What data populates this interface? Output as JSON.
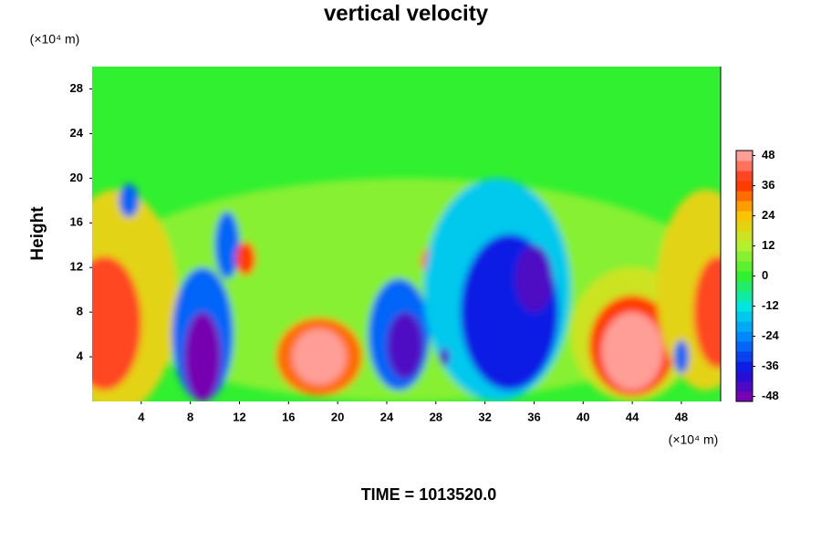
{
  "chart_data": {
    "type": "contour",
    "title": "vertical velocity",
    "ylabel": "Height",
    "yunit": "(×10⁴ m)",
    "xunit": "(×10⁴ m)",
    "footer": "TIME = 1013520.0",
    "xlim": [
      0,
      51.2
    ],
    "xticks": [
      4,
      8,
      12,
      16,
      20,
      24,
      28,
      32,
      36,
      40,
      44,
      48
    ],
    "ylim": [
      0,
      30
    ],
    "yticks": [
      4,
      8,
      12,
      16,
      20,
      24,
      28
    ],
    "clim": [
      -50,
      50
    ],
    "cticks": [
      -48,
      -36,
      -24,
      -12,
      0,
      12,
      24,
      36,
      48
    ],
    "clevel_step": 4,
    "colormap": [
      "#8a00a8",
      "#1010e0",
      "#0080ff",
      "#00e6e6",
      "#30f030",
      "#b8f030",
      "#ffc000",
      "#ff2a00",
      "#ffb4b4"
    ],
    "field": {
      "x": [
        25.6,
        2,
        1,
        9,
        9,
        11,
        12.5,
        18.5,
        18.5,
        3,
        25,
        25.5,
        28,
        33,
        34,
        36,
        44,
        44,
        44,
        50,
        51,
        28.7,
        48
      ],
      "y": [
        10,
        9,
        7,
        6,
        4,
        14,
        12.8,
        4,
        4,
        18,
        6,
        5,
        12.5,
        10,
        8,
        11,
        6,
        5,
        4.5,
        10,
        8,
        4,
        4
      ],
      "values": [
        6,
        20,
        40,
        -30,
        -48,
        -30,
        36,
        32,
        48,
        -30,
        -28,
        -44,
        36,
        -18,
        -36,
        -46,
        16,
        36,
        48,
        20,
        40,
        -44,
        -30
      ],
      "sx": [
        26,
        5,
        3,
        2.5,
        1.5,
        1,
        0.8,
        3.5,
        2.2,
        0.8,
        2.5,
        1.5,
        1.2,
        6,
        4,
        1.5,
        5,
        3.5,
        2.5,
        4,
        2,
        0.4,
        0.6
      ],
      "sy": [
        10,
        10,
        6,
        6,
        4,
        3,
        1.5,
        3.5,
        2.5,
        1.5,
        5,
        3,
        1.5,
        10,
        7,
        3,
        6,
        4.5,
        3.5,
        9,
        5,
        0.8,
        1.5
      ]
    }
  }
}
